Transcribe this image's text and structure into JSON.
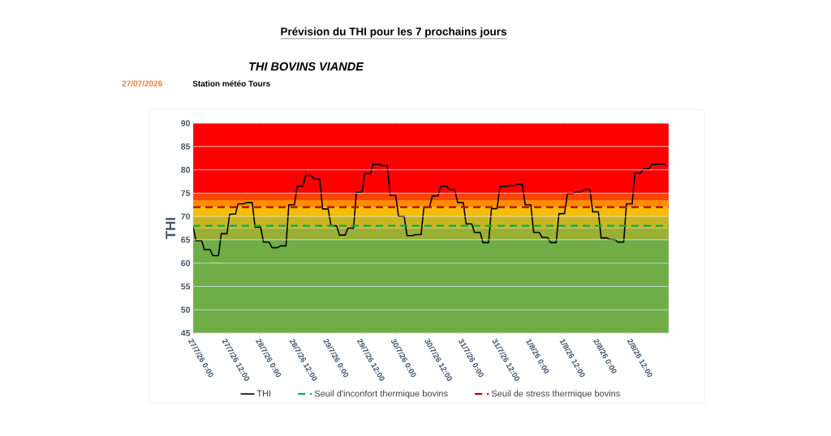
{
  "chart_data": {
    "type": "line",
    "title": "Prévision du THI pour les 7 prochains jours",
    "subtitle": "THI BOVINS VIANDE",
    "annotations": [
      "27/07/2026",
      "Station météo Tours"
    ],
    "ylabel": "THI",
    "xlim": [
      "2026-07-27T00:00",
      "2026-08-03T01:00"
    ],
    "ylim": [
      45,
      90
    ],
    "yticks": [
      45,
      50,
      55,
      60,
      65,
      70,
      75,
      80,
      85,
      90
    ],
    "xticks": [
      {
        "value": "2026-07-27T00:00",
        "label": "27/7/26 0:00"
      },
      {
        "value": "2026-07-27T12:00",
        "label": "27/7/26 12:00"
      },
      {
        "value": "2026-07-28T00:00",
        "label": "28/7/26 0:00"
      },
      {
        "value": "2026-07-28T12:00",
        "label": "28/7/26 12:00"
      },
      {
        "value": "2026-07-29T00:00",
        "label": "29/7/26 0:00"
      },
      {
        "value": "2026-07-29T12:00",
        "label": "29/7/26 12:00"
      },
      {
        "value": "2026-07-30T00:00",
        "label": "30/7/26 0:00"
      },
      {
        "value": "2026-07-30T12:00",
        "label": "30/7/26 12:00"
      },
      {
        "value": "2026-07-31T00:00",
        "label": "31/7/26 0:00"
      },
      {
        "value": "2026-07-31T12:00",
        "label": "31/7/26 12:00"
      },
      {
        "value": "2026-08-01T00:00",
        "label": "1/8/26 0:00"
      },
      {
        "value": "2026-08-01T12:00",
        "label": "1/8/26 12:00"
      },
      {
        "value": "2026-08-02T00:00",
        "label": "2/8/26 0:00"
      },
      {
        "value": "2026-08-02T12:00",
        "label": "2/8/26 12:00"
      }
    ],
    "grid": "y",
    "legend": "bottom",
    "bands": [
      {
        "axis": "y",
        "from": 45,
        "to": 65,
        "color": "#70ad47"
      },
      {
        "axis": "y",
        "from": 65,
        "to": 67.5,
        "color": "#9aaf35"
      },
      {
        "axis": "y",
        "from": 67.5,
        "to": 70,
        "color": "#c9b522"
      },
      {
        "axis": "y",
        "from": 70,
        "to": 72,
        "color": "#f5bd08"
      },
      {
        "axis": "y",
        "from": 72,
        "to": 73.5,
        "color": "#ff8c00"
      },
      {
        "axis": "y",
        "from": 73.5,
        "to": 75,
        "color": "#ff4400"
      },
      {
        "axis": "y",
        "from": 75,
        "to": 90,
        "color": "#ff0000"
      }
    ],
    "series": [
      {
        "name": "THI",
        "color": "#000000",
        "line_style": "solid",
        "x": [
          "2026-07-27T00:00",
          "2026-07-27T01:00",
          "2026-07-27T03:00",
          "2026-07-27T04:00",
          "2026-07-27T06:00",
          "2026-07-27T07:00",
          "2026-07-27T09:00",
          "2026-07-27T10:00",
          "2026-07-27T12:00",
          "2026-07-27T13:00",
          "2026-07-27T15:00",
          "2026-07-27T16:00",
          "2026-07-27T18:00",
          "2026-07-27T19:00",
          "2026-07-27T21:00",
          "2026-07-27T22:00",
          "2026-07-28T00:00",
          "2026-07-28T01:00",
          "2026-07-28T03:00",
          "2026-07-28T04:00",
          "2026-07-28T06:00",
          "2026-07-28T07:00",
          "2026-07-28T09:00",
          "2026-07-28T10:00",
          "2026-07-28T12:00",
          "2026-07-28T13:00",
          "2026-07-28T15:00",
          "2026-07-28T16:00",
          "2026-07-28T18:00",
          "2026-07-28T19:00",
          "2026-07-28T21:00",
          "2026-07-28T22:00",
          "2026-07-29T00:00",
          "2026-07-29T01:00",
          "2026-07-29T03:00",
          "2026-07-29T04:00",
          "2026-07-29T06:00",
          "2026-07-29T07:00",
          "2026-07-29T09:00",
          "2026-07-29T10:00",
          "2026-07-29T12:00",
          "2026-07-29T13:00",
          "2026-07-29T15:00",
          "2026-07-29T16:00",
          "2026-07-29T18:00",
          "2026-07-29T19:00",
          "2026-07-29T21:00",
          "2026-07-29T22:00",
          "2026-07-30T00:00",
          "2026-07-30T01:00",
          "2026-07-30T03:00",
          "2026-07-30T04:00",
          "2026-07-30T06:00",
          "2026-07-30T07:00",
          "2026-07-30T09:00",
          "2026-07-30T10:00",
          "2026-07-30T12:00",
          "2026-07-30T13:00",
          "2026-07-30T15:00",
          "2026-07-30T16:00",
          "2026-07-30T18:00",
          "2026-07-30T19:00",
          "2026-07-30T21:00",
          "2026-07-30T22:00",
          "2026-07-31T00:00",
          "2026-07-31T01:00",
          "2026-07-31T03:00",
          "2026-07-31T04:00",
          "2026-07-31T06:00",
          "2026-07-31T07:00",
          "2026-07-31T09:00",
          "2026-07-31T10:00",
          "2026-07-31T12:00",
          "2026-07-31T13:00",
          "2026-07-31T15:00",
          "2026-07-31T16:00",
          "2026-07-31T18:00",
          "2026-07-31T19:00",
          "2026-07-31T21:00",
          "2026-07-31T22:00",
          "2026-08-01T00:00",
          "2026-08-01T01:00",
          "2026-08-01T03:00",
          "2026-08-01T04:00",
          "2026-08-01T06:00",
          "2026-08-01T07:00",
          "2026-08-01T09:00",
          "2026-08-01T10:00",
          "2026-08-01T12:00",
          "2026-08-01T13:00",
          "2026-08-01T15:00",
          "2026-08-01T16:00",
          "2026-08-01T18:00",
          "2026-08-01T19:00",
          "2026-08-01T21:00",
          "2026-08-01T22:00",
          "2026-08-02T00:00",
          "2026-08-02T01:00",
          "2026-08-02T03:00",
          "2026-08-02T04:00",
          "2026-08-02T06:00",
          "2026-08-02T07:00",
          "2026-08-02T09:00",
          "2026-08-02T10:00",
          "2026-08-02T12:00",
          "2026-08-02T13:00",
          "2026-08-02T15:00",
          "2026-08-02T16:00",
          "2026-08-02T18:00",
          "2026-08-02T19:00",
          "2026-08-03T00:00"
        ],
        "values": [
          67.8,
          64.8,
          64.8,
          62.9,
          62.9,
          61.6,
          61.6,
          66.3,
          66.3,
          70.5,
          70.5,
          72.7,
          72.7,
          73.0,
          73.0,
          67.7,
          67.7,
          64.5,
          64.5,
          63.3,
          63.3,
          63.7,
          63.7,
          72.5,
          72.5,
          76.5,
          76.5,
          78.8,
          78.8,
          78.0,
          78.0,
          71.6,
          71.6,
          68.0,
          68.0,
          66.0,
          66.0,
          67.5,
          67.5,
          75.2,
          75.2,
          79.2,
          79.2,
          81.2,
          81.2,
          80.9,
          80.9,
          74.5,
          74.5,
          70.0,
          70.0,
          65.9,
          65.9,
          66.1,
          66.1,
          72.0,
          72.0,
          74.4,
          74.4,
          76.5,
          76.5,
          75.8,
          75.8,
          73.0,
          73.0,
          68.4,
          68.4,
          66.6,
          66.6,
          64.4,
          64.4,
          71.7,
          71.7,
          76.4,
          76.4,
          76.6,
          76.6,
          76.9,
          76.9,
          72.5,
          72.5,
          66.6,
          66.6,
          65.5,
          65.5,
          64.4,
          64.4,
          70.6,
          70.6,
          74.9,
          74.9,
          75.3,
          75.3,
          75.8,
          75.8,
          71.0,
          71.0,
          65.4,
          65.4,
          65.1,
          65.0,
          64.5,
          64.5,
          72.7,
          72.7,
          79.3,
          79.3,
          80.2,
          80.2,
          81.2,
          81.2
        ]
      },
      {
        "name": "Seuil d'inconfort thermique bovins",
        "color": "#00b050",
        "line_style": "dashed",
        "x": [
          "2026-07-27T00:00",
          "2026-08-03T01:00"
        ],
        "values": [
          68,
          68
        ]
      },
      {
        "name": "Seuil de stress thermique bovins",
        "color": "#c00000",
        "line_style": "dashed",
        "x": [
          "2026-07-27T00:00",
          "2026-08-03T01:00"
        ],
        "values": [
          72,
          72
        ]
      }
    ]
  }
}
